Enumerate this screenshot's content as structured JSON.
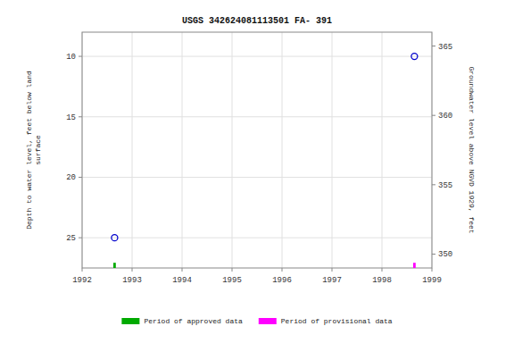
{
  "chart_data": {
    "type": "scatter",
    "title": "USGS 342624081113501 FA- 391",
    "ylabel": "Depth to water level, feet below land\nsurface",
    "y2label": "Groundwater level above NGVD 1929, feet",
    "xlim": [
      1992,
      1999
    ],
    "xticks": [
      1992,
      1993,
      1994,
      1995,
      1996,
      1997,
      1998,
      1999
    ],
    "ylim": [
      27.5,
      8
    ],
    "yticks": [
      10,
      15,
      20,
      25
    ],
    "y2lim": [
      349,
      366
    ],
    "y2ticks": [
      350,
      355,
      360,
      365
    ],
    "grid": true,
    "legend": "bottom",
    "series": [
      {
        "type": "scatter",
        "marker": "circle",
        "color": "#0000cc",
        "x": [
          1992.65,
          1998.65
        ],
        "values": [
          25.0,
          10.0
        ]
      },
      {
        "type": "rug",
        "name": "Period of approved data",
        "color": "#00aa00",
        "x": [
          1992.65
        ]
      },
      {
        "type": "rug",
        "name": "Period of provisional data",
        "color": "#ff00ff",
        "x": [
          1998.65
        ]
      }
    ]
  }
}
